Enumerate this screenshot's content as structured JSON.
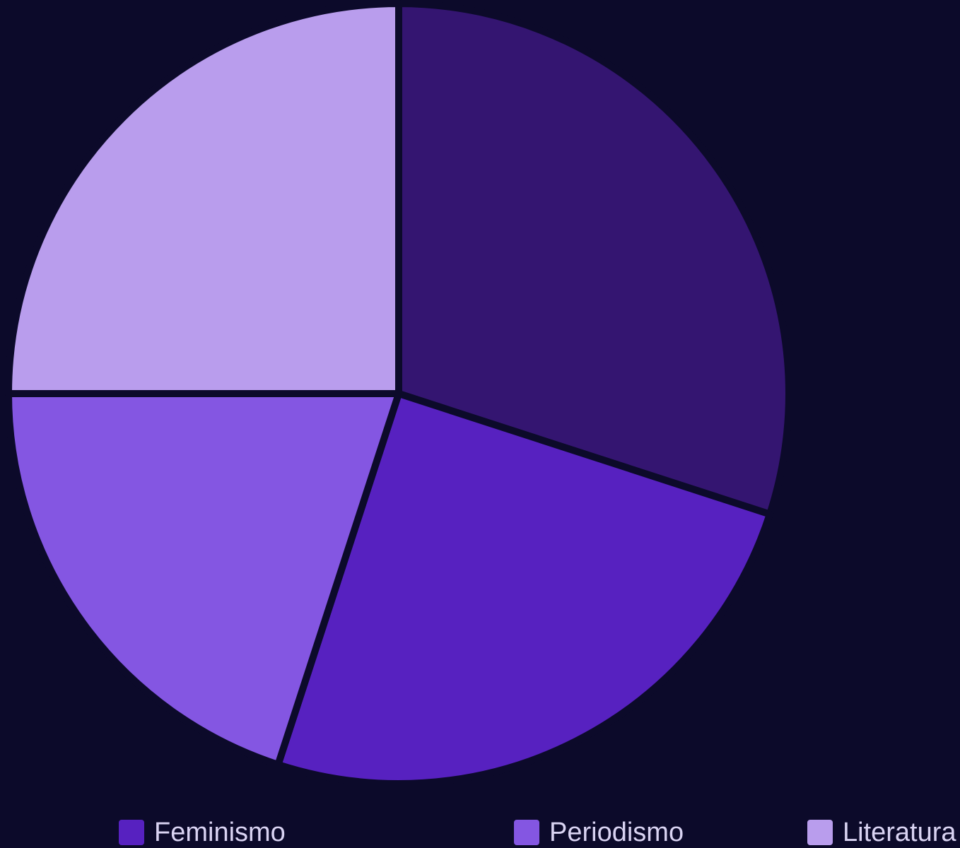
{
  "chart_data": {
    "type": "pie",
    "title": "",
    "labels": [
      "",
      "Feminismo",
      "Periodismo",
      "Literatura"
    ],
    "values": [
      30,
      25,
      20,
      25
    ],
    "colors": [
      "#341571",
      "#5721c0",
      "#8456e2",
      "#b99ded"
    ],
    "background": "#0c0a2a",
    "separator_color": "#0c0a2a",
    "start": "12 o'clock",
    "direction": "clockwise",
    "legend_position": "bottom"
  },
  "legend": {
    "items": [
      {
        "label": "Feminismo",
        "color": "#5721c0"
      },
      {
        "label": "Periodismo",
        "color": "#8456e2"
      },
      {
        "label": "Literatura",
        "color": "#b99ded"
      }
    ]
  }
}
